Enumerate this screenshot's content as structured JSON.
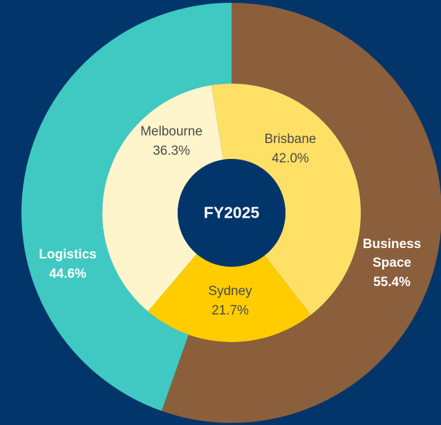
{
  "chart_data": {
    "type": "donut",
    "center_label": "FY2025",
    "series": [
      {
        "categories": [
          "Business Space",
          "Logistics"
        ],
        "values": [
          55.4,
          44.6
        ],
        "value_labels": [
          "55.4%",
          "44.6%"
        ],
        "colors": [
          "#8b5e3c",
          "#40c9c2"
        ]
      },
      {
        "categories": [
          "Brisbane",
          "Sydney",
          "Melbourne"
        ],
        "values": [
          42.0,
          21.7,
          36.3
        ],
        "value_labels": [
          "42.0%",
          "21.7%",
          "36.3%"
        ],
        "colors": [
          "#ffe066",
          "#ffcc00",
          "#fff5cc"
        ]
      }
    ]
  }
}
